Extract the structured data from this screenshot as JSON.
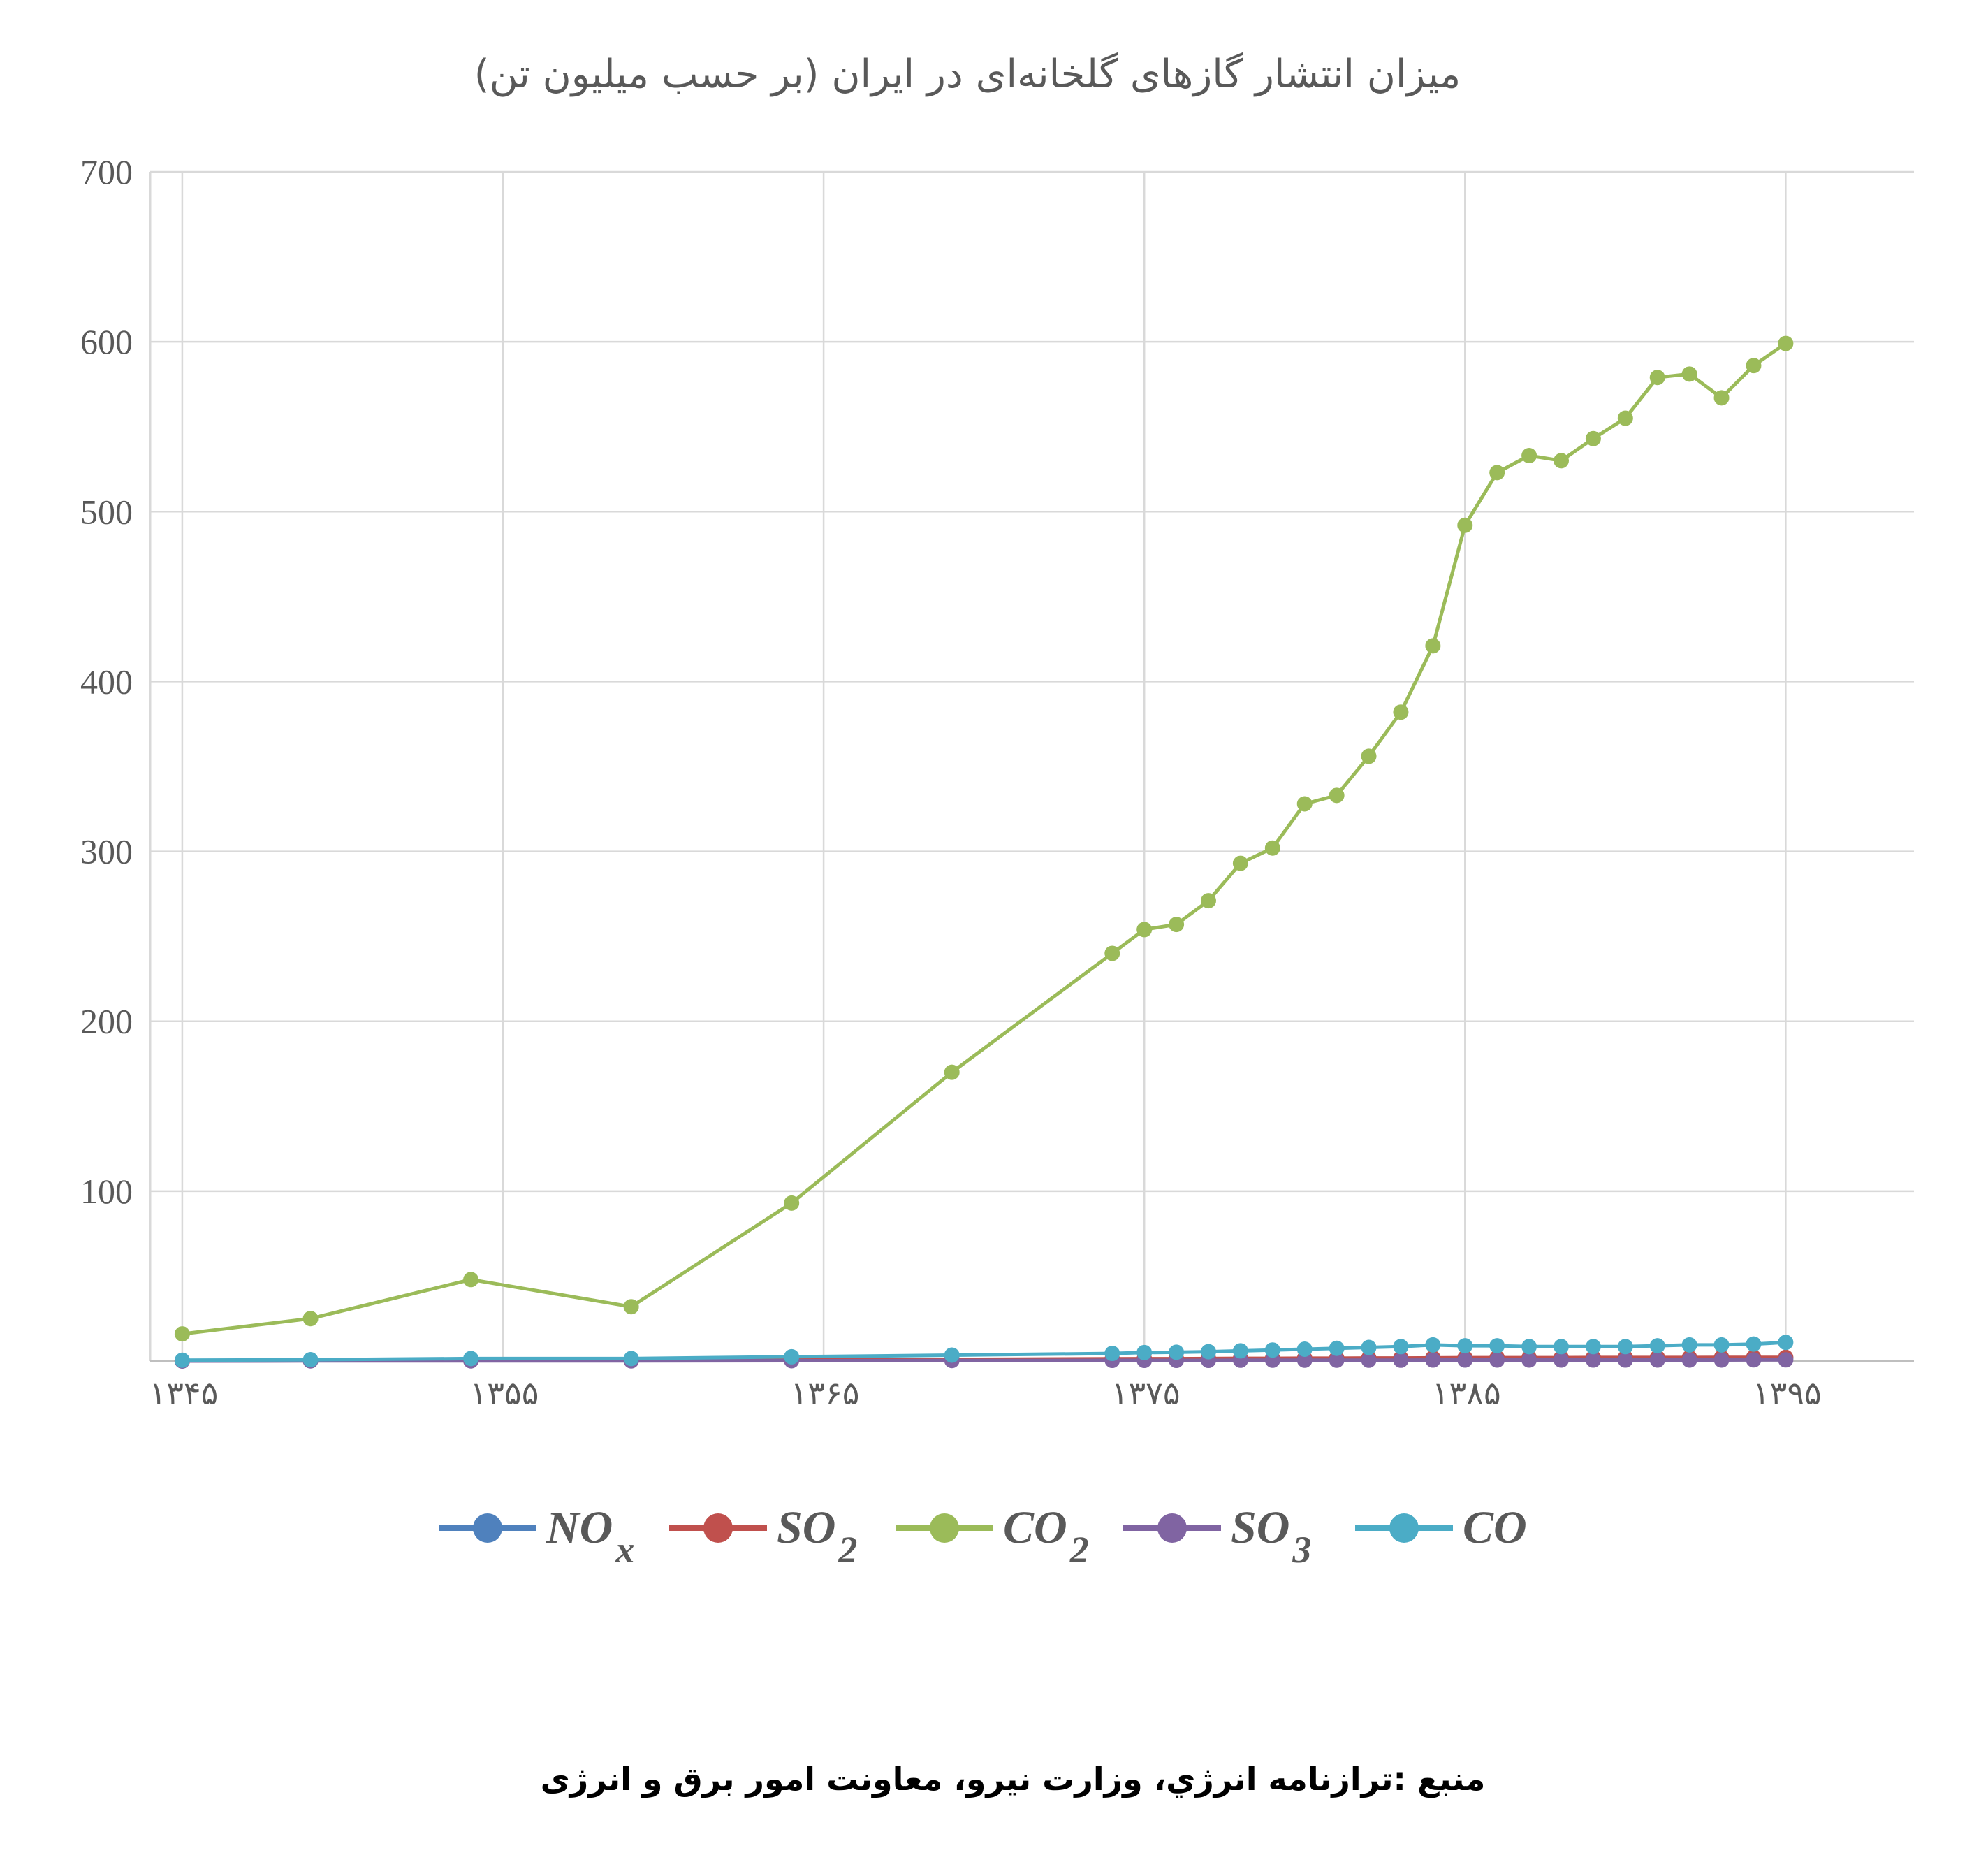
{
  "chart_data": {
    "type": "line",
    "title": "میزان انتشار گازهای گلخانه‌ای در ایران (بر حسب میلیون تن)",
    "source": "منبع :ترازنامه انرژي، وزارت نيرو، معاونت امور برق و انرژی",
    "ylim": [
      0,
      700
    ],
    "yticks": [
      "",
      "100",
      "200",
      "300",
      "400",
      "500",
      "600",
      "700"
    ],
    "ytick_values": [
      0,
      100,
      200,
      300,
      400,
      500,
      600,
      700
    ],
    "xlim": [
      1344,
      1399
    ],
    "xticks": [
      "۱۳۴۵",
      "۱۳۵۵",
      "۱۳۶۵",
      "۱۳۷۵",
      "۱۳۸۵",
      "۱۳۹۵"
    ],
    "xtick_values": [
      1345,
      1355,
      1365,
      1375,
      1385,
      1395
    ],
    "grid": true,
    "legend_position": "bottom",
    "x": [
      1345,
      1349,
      1354,
      1359,
      1364,
      1369,
      1374,
      1375,
      1376,
      1377,
      1378,
      1379,
      1380,
      1381,
      1382,
      1383,
      1384,
      1385,
      1386,
      1387,
      1388,
      1389,
      1390,
      1391,
      1392,
      1393,
      1394,
      1395
    ],
    "series": [
      {
        "name": "NO",
        "sub": "x",
        "color": "#4f81bd",
        "values": [
          0.1,
          0.2,
          0.3,
          0.3,
          0.5,
          0.8,
          1.0,
          1.1,
          1.1,
          1.2,
          1.2,
          1.3,
          1.3,
          1.4,
          1.4,
          1.5,
          1.6,
          1.6,
          1.7,
          1.7,
          1.7,
          1.7,
          1.8,
          1.8,
          1.8,
          1.8,
          1.9,
          1.9
        ]
      },
      {
        "name": "SO",
        "sub": "2",
        "color": "#c0504d",
        "values": [
          0.1,
          0.2,
          0.4,
          0.4,
          0.6,
          1.0,
          1.3,
          1.4,
          1.4,
          1.5,
          1.6,
          1.6,
          1.7,
          1.7,
          1.8,
          1.8,
          1.9,
          2.0,
          2.0,
          2.0,
          2.0,
          2.1,
          2.1,
          2.1,
          2.1,
          2.2,
          2.2,
          2.2
        ]
      },
      {
        "name": "CO",
        "sub": "2",
        "color": "#9bbb59",
        "values": [
          16,
          25,
          48,
          32,
          93,
          170,
          240,
          254,
          257,
          271,
          293,
          302,
          328,
          333,
          356,
          382,
          421,
          492,
          523,
          533,
          530,
          543,
          555,
          579,
          581,
          567,
          586,
          599
        ]
      },
      {
        "name": "SO",
        "sub": "3",
        "color": "#8064a2",
        "values": [
          0.0,
          0.1,
          0.1,
          0.1,
          0.2,
          0.3,
          0.4,
          0.4,
          0.4,
          0.4,
          0.5,
          0.5,
          0.5,
          0.5,
          0.5,
          0.5,
          0.6,
          0.6,
          0.6,
          0.6,
          0.6,
          0.6,
          0.6,
          0.6,
          0.6,
          0.6,
          0.7,
          0.7
        ]
      },
      {
        "name": "CO",
        "sub": "",
        "color": "#4bacc6",
        "values": [
          0.5,
          0.8,
          1.5,
          1.5,
          2.5,
          3.5,
          4.5,
          5.0,
          5.2,
          5.5,
          6.0,
          6.5,
          7.0,
          7.5,
          8.0,
          8.5,
          9.5,
          9.0,
          9.0,
          8.5,
          8.5,
          8.5,
          8.5,
          9.0,
          9.5,
          9.5,
          10.0,
          11.0
        ]
      }
    ]
  }
}
